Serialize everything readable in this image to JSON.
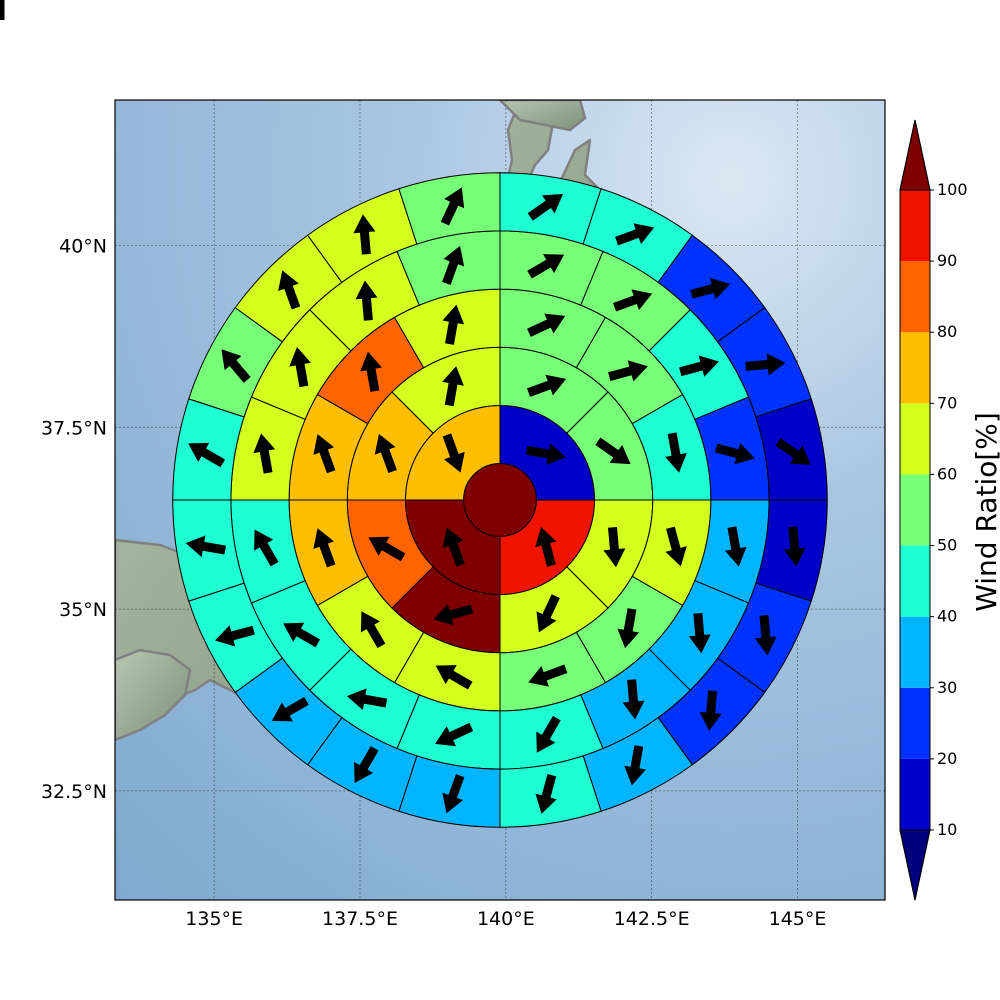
{
  "map": {
    "lon_range": [
      133.3,
      146.5
    ],
    "lat_range": [
      31.0,
      42.0
    ],
    "gridlines": true,
    "center": {
      "lon": 139.9,
      "lat": 36.5
    },
    "ocean_color": "#8fb4d6",
    "land_color": "#9aa89a",
    "coastline_color": "#808080",
    "lon_ticks": [
      {
        "value": 135.0,
        "label": "135°E"
      },
      {
        "value": 137.5,
        "label": "137.5°E"
      },
      {
        "value": 140.0,
        "label": "140°E"
      },
      {
        "value": 142.5,
        "label": "142.5°E"
      },
      {
        "value": 145.0,
        "label": "145°E"
      }
    ],
    "lat_ticks": [
      {
        "value": 40.0,
        "label": "40°N"
      },
      {
        "value": 37.5,
        "label": "37.5°N"
      },
      {
        "value": 35.0,
        "label": "35°N"
      },
      {
        "value": 32.5,
        "label": "32.5°N"
      }
    ]
  },
  "colorbar": {
    "title": "Wind Ratio[%]",
    "levels": [
      10,
      20,
      30,
      40,
      50,
      60,
      70,
      80,
      90,
      100
    ],
    "colors": [
      "#0000c8",
      "#0032ff",
      "#00b4ff",
      "#1effd2",
      "#78ff78",
      "#d2ff1e",
      "#ffbe00",
      "#ff6400",
      "#f01400"
    ],
    "under_color": "#00007f",
    "over_color": "#7f0000",
    "tick_labels": [
      "10",
      "20",
      "30",
      "40",
      "50",
      "60",
      "70",
      "80",
      "90",
      "100"
    ]
  },
  "chart_data": {
    "type": "polar_sector_map",
    "ring_radii_deg": [
      0.5,
      1.3,
      2.1,
      2.9,
      3.7,
      4.5
    ],
    "center_value": 100,
    "rings": [
      {
        "sectors": 4,
        "values": [
          15,
          95,
          100,
          75
        ],
        "arrow_dirs": [
          100,
          345,
          340,
          160
        ]
      },
      {
        "sectors": 8,
        "values": [
          55,
          55,
          60,
          60,
          100,
          85,
          70,
          65
        ],
        "arrow_dirs": [
          70,
          125,
          175,
          205,
          255,
          300,
          340,
          10
        ]
      },
      {
        "sectors": 12,
        "values": [
          55,
          55,
          45,
          60,
          50,
          55,
          60,
          65,
          75,
          75,
          80,
          65
        ],
        "arrow_dirs": [
          65,
          75,
          170,
          165,
          190,
          250,
          300,
          330,
          340,
          340,
          350,
          10
        ]
      },
      {
        "sectors": 16,
        "values": [
          55,
          55,
          45,
          25,
          35,
          35,
          35,
          40,
          45,
          45,
          40,
          45,
          60,
          60,
          65,
          55
        ],
        "arrow_dirs": [
          60,
          70,
          75,
          105,
          170,
          175,
          175,
          210,
          245,
          280,
          300,
          330,
          350,
          350,
          355,
          20
        ],
        "note": "sector order clockwise from north"
      },
      {
        "sectors": 20,
        "values": [
          45,
          45,
          25,
          20,
          10,
          15,
          20,
          25,
          35,
          40,
          35,
          30,
          35,
          40,
          45,
          45,
          50,
          60,
          60,
          55
        ],
        "arrow_dirs": [
          55,
          70,
          75,
          85,
          125,
          175,
          175,
          185,
          190,
          195,
          200,
          210,
          240,
          255,
          280,
          300,
          320,
          340,
          355,
          25
        ],
        "note": "sector order clockwise from north"
      },
      {
        "sectors": 16,
        "values": [
          40,
          30,
          15,
          20,
          20,
          25,
          25,
          25,
          30,
          25,
          25,
          20,
          35,
          45,
          55,
          45
        ],
        "arrow_dirs": [
          55,
          80,
          60,
          170,
          175,
          195,
          200,
          185,
          205,
          240,
          255,
          295,
          330,
          345,
          355,
          20
        ],
        "note": "sector order clockwise from north"
      }
    ]
  }
}
